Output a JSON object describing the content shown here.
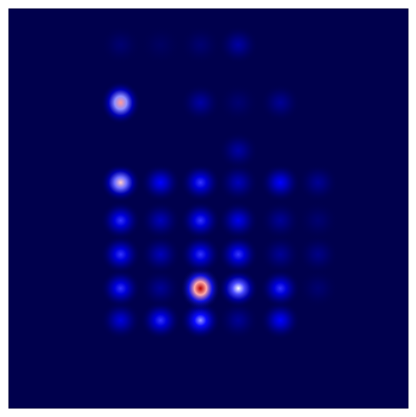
{
  "chart_data": {
    "type": "heatmap",
    "x": [
      2.8,
      3.8,
      4.8,
      5.75,
      6.8,
      7.75
    ],
    "y": [
      2.2,
      3.0,
      3.85,
      4.7,
      5.65,
      6.45,
      7.65,
      9.1
    ],
    "values": [
      [
        0.2,
        0.3,
        0.4,
        0.1,
        0.25,
        0.0
      ],
      [
        0.3,
        0.1,
        0.9,
        0.5,
        0.3,
        0.05
      ],
      [
        0.3,
        0.15,
        0.3,
        0.3,
        0.1,
        0.08
      ],
      [
        0.3,
        0.15,
        0.3,
        0.22,
        0.1,
        0.05
      ],
      [
        0.55,
        0.25,
        0.3,
        0.15,
        0.25,
        0.1
      ],
      [
        0.0,
        0.0,
        0.0,
        0.12,
        0.0,
        0.0
      ],
      [
        0.6,
        0.0,
        0.12,
        0.05,
        0.1,
        0.0
      ],
      [
        0.05,
        0.03,
        0.05,
        0.12,
        0.0,
        0.0
      ]
    ],
    "xlim": [
      0,
      10
    ],
    "ylim": [
      10,
      0
    ],
    "vlim": [
      0,
      1
    ],
    "tick_labels": false,
    "grid": false
  }
}
